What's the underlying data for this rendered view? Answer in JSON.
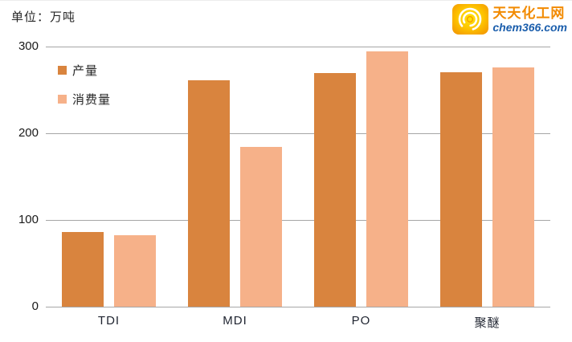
{
  "header": {
    "unit_label": "单位：万吨"
  },
  "logo": {
    "site_name": "天天化工网",
    "domain": "chem366.com",
    "icon": "swirl-icon",
    "name_color": "#f28a00",
    "domain_color": "#1b5eac",
    "icon_colors": {
      "outer": "#f29500",
      "mid": "#fec500",
      "inner": "#ffe60a",
      "arcs": "#ffffff"
    }
  },
  "chart_data": {
    "type": "bar",
    "title": "",
    "unit": "万吨",
    "categories": [
      "TDI",
      "MDI",
      "PO",
      "聚醚"
    ],
    "series": [
      {
        "name": "产量",
        "color": "#d9843e",
        "values": [
          86,
          261,
          269,
          270
        ]
      },
      {
        "name": "消费量",
        "color": "#f6b189",
        "values": [
          82,
          184,
          294,
          276
        ]
      }
    ],
    "ylim": [
      0,
      300
    ],
    "yticks": [
      0,
      100,
      200,
      300
    ],
    "grid": true,
    "gridline_color": "#a6a6a6",
    "legend_position": "top-left-inside"
  }
}
